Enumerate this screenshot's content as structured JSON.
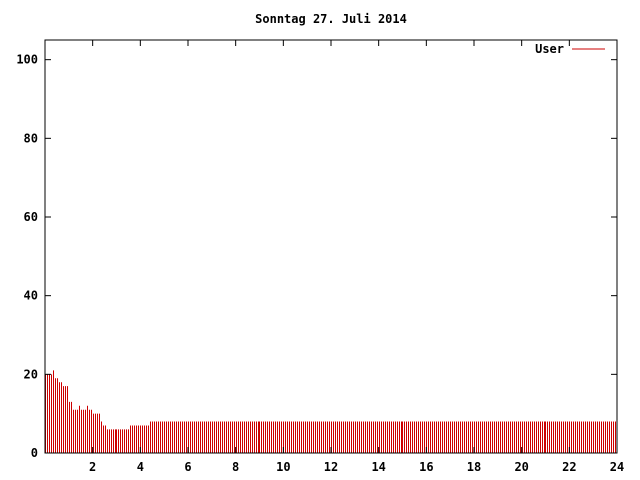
{
  "chart_data": {
    "type": "bar",
    "title": "Sonntag 27. Juli 2014",
    "xlabel": "",
    "ylabel": "",
    "xlim": [
      0,
      24
    ],
    "ylim": [
      0,
      105
    ],
    "x_ticks": [
      2,
      4,
      6,
      8,
      10,
      12,
      14,
      16,
      18,
      20,
      22,
      24
    ],
    "y_ticks": [
      0,
      20,
      40,
      60,
      80,
      100
    ],
    "grid": false,
    "legend_position": "top-right",
    "bar_interval_hours": 0.0833333,
    "series": [
      {
        "name": "User",
        "color": "#cc0000",
        "values": [
          20,
          20,
          20,
          20,
          21,
          19,
          19,
          18,
          18,
          17,
          17,
          17,
          13,
          13,
          11,
          11,
          11,
          12,
          11,
          11,
          11,
          12,
          11,
          11,
          10,
          10,
          10,
          10,
          8,
          7,
          7,
          6,
          6,
          6,
          6,
          6,
          6,
          6,
          6,
          6,
          6,
          6,
          6,
          7,
          7,
          7,
          7,
          7,
          7,
          7,
          7,
          7,
          7,
          8,
          8,
          8,
          8,
          8,
          8,
          8,
          8,
          8,
          8,
          8,
          8,
          8,
          8,
          8,
          8,
          8,
          8,
          8,
          8,
          8,
          8,
          8,
          8,
          8,
          8,
          8,
          8,
          8,
          8,
          8,
          8,
          8,
          8,
          8,
          8,
          8,
          8,
          8,
          8,
          8,
          8,
          8,
          8,
          8,
          8,
          8,
          8,
          8,
          8,
          8,
          8,
          8,
          8,
          8,
          8,
          8,
          8,
          8,
          8,
          8,
          8,
          8,
          8,
          8,
          8,
          8,
          8,
          8,
          8,
          8,
          8,
          8,
          8,
          8,
          8,
          8,
          8,
          8,
          8,
          8,
          8,
          8,
          8,
          8,
          8,
          8,
          8,
          8,
          8,
          8,
          8,
          8,
          8,
          8,
          8,
          8,
          8,
          8,
          8,
          8,
          8,
          8,
          8,
          8,
          8,
          8,
          8,
          8,
          8,
          8,
          8,
          8,
          8,
          8,
          8,
          8,
          8,
          8,
          8,
          8,
          8,
          8,
          8,
          8,
          8,
          8,
          8,
          8,
          8,
          8,
          8,
          8,
          8,
          8,
          8,
          8,
          8,
          8,
          8,
          8,
          8,
          8,
          8,
          8,
          8,
          8,
          8,
          8,
          8,
          8,
          8,
          8,
          8,
          8,
          8,
          8,
          8,
          8,
          8,
          8,
          8,
          8,
          8,
          8,
          8,
          8,
          8,
          8,
          8,
          8,
          8,
          8,
          8,
          8,
          8,
          8,
          8,
          8,
          8,
          8,
          8,
          8,
          8,
          8,
          8,
          8,
          8,
          8,
          8,
          8,
          8,
          8,
          8,
          8,
          8,
          8,
          8,
          8,
          8,
          8,
          8,
          8,
          8,
          8,
          8,
          8,
          8,
          8,
          8,
          8,
          8,
          8,
          8,
          8,
          8,
          8,
          8,
          8,
          8,
          8,
          8,
          8,
          8,
          8,
          8,
          8,
          8,
          8,
          8,
          8,
          8,
          8,
          8,
          8
        ]
      }
    ]
  }
}
